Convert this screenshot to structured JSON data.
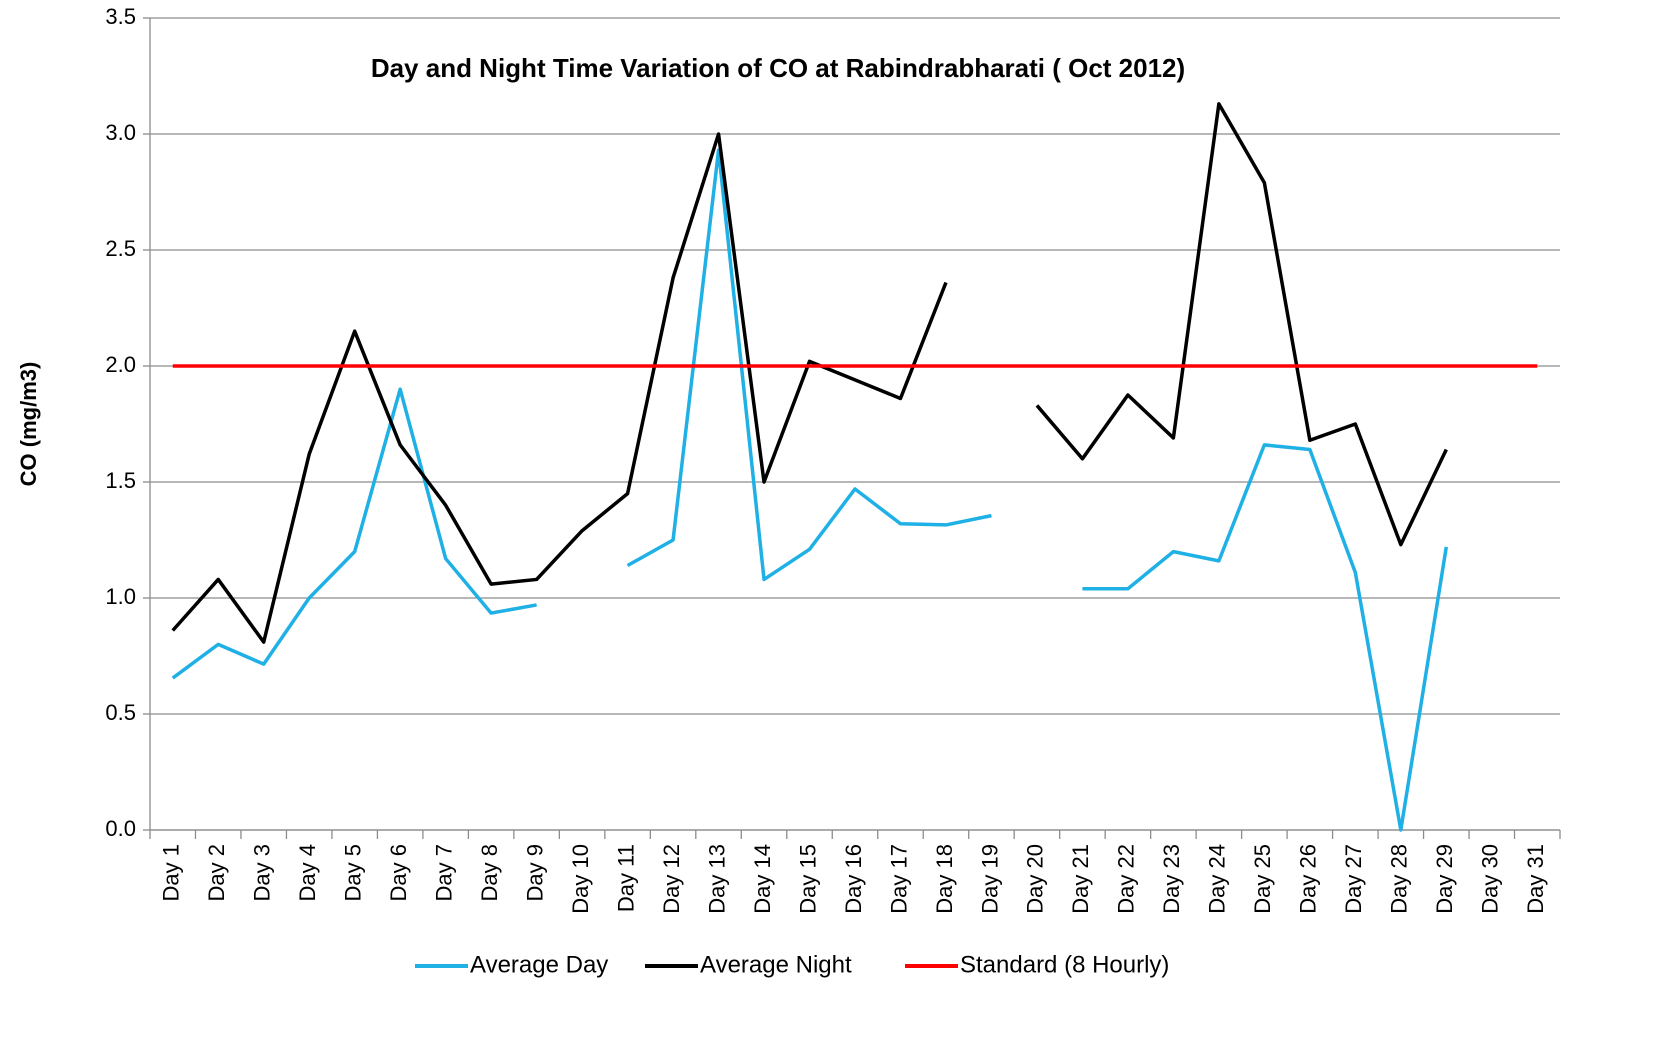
{
  "chart_data": {
    "type": "line",
    "title": "Day and Night Time Variation of CO at Rabindrabharati ( Oct 2012)",
    "y_label": "CO (mg/m3)",
    "categories": [
      "Day 1",
      "Day 2",
      "Day 3",
      "Day 4",
      "Day 5",
      "Day 6",
      "Day 7",
      "Day 8",
      "Day 9",
      "Day 10",
      "Day 11",
      "Day 12",
      "Day 13",
      "Day 14",
      "Day 15",
      "Day 16",
      "Day 17",
      "Day 18",
      "Day 19",
      "Day 20",
      "Day 21",
      "Day 22",
      "Day 23",
      "Day 24",
      "Day 25",
      "Day 26",
      "Day 27",
      "Day 28",
      "Day 29",
      "Day 30",
      "Day 31"
    ],
    "series": [
      {
        "name": "Average Day",
        "color": "#1fb0e6",
        "values": [
          0.655,
          0.8,
          0.715,
          1.0,
          1.2,
          1.9,
          1.17,
          0.935,
          0.97,
          null,
          1.14,
          1.25,
          2.93,
          1.08,
          1.21,
          1.47,
          1.32,
          1.315,
          1.355,
          null,
          1.04,
          1.04,
          1.2,
          1.16,
          1.66,
          1.64,
          1.11,
          0,
          1.22,
          null,
          null
        ]
      },
      {
        "name": "Average Night",
        "color": "#000000",
        "values": [
          0.86,
          1.08,
          0.81,
          1.62,
          2.15,
          1.66,
          1.4,
          1.06,
          1.08,
          1.29,
          1.45,
          2.38,
          3.0,
          1.5,
          2.02,
          1.94,
          1.86,
          2.36,
          null,
          1.83,
          1.6,
          1.875,
          1.69,
          3.13,
          2.79,
          1.68,
          1.75,
          1.23,
          1.64,
          null,
          null
        ]
      },
      {
        "name": "Standard (8 Hourly)",
        "color": "#ff0000",
        "values": [
          2,
          2,
          2,
          2,
          2,
          2,
          2,
          2,
          2,
          2,
          2,
          2,
          2,
          2,
          2,
          2,
          2,
          2,
          2,
          2,
          2,
          2,
          2,
          2,
          2,
          2,
          2,
          2,
          2,
          2,
          2
        ]
      }
    ],
    "ylim": [
      0,
      3.5
    ],
    "yticks": [
      {
        "value": 0,
        "label": "0.0"
      },
      0.5,
      {
        "value": 1,
        "label": "1.0"
      },
      1.5,
      {
        "value": 2,
        "label": "2.0"
      },
      2.5,
      {
        "value": 3,
        "label": "3.0"
      },
      3.5
    ],
    "grid": true,
    "legend": "bottom"
  }
}
